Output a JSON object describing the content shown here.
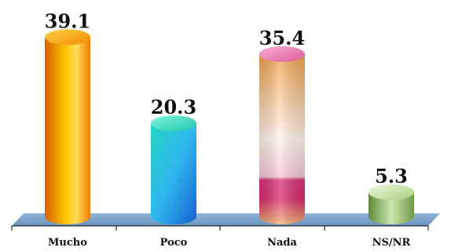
{
  "chart_data": {
    "type": "bar",
    "style": "3d-cylinder",
    "categories": [
      "Mucho",
      "Poco",
      "Nada",
      "NS/NR"
    ],
    "values": [
      39.1,
      20.3,
      35.4,
      5.3
    ],
    "value_labels": [
      "39.1",
      "20.3",
      "35.4",
      "5.3"
    ],
    "title": "",
    "xlabel": "",
    "ylabel": "",
    "ylim": [
      0,
      40
    ],
    "grid": false,
    "legend": "none",
    "colors": {
      "Mucho": [
        "#f07a00",
        "#ffc800",
        "#ffe27a"
      ],
      "Poco": [
        "#1a6fd6",
        "#2bd0e0",
        "#7df5d5"
      ],
      "Nada": [
        "#e0508a",
        "#f3a24a",
        "#fff3e8"
      ],
      "NS/NR": [
        "#4d7d2a",
        "#a8cf78",
        "#e2f2cf"
      ],
      "floor": "#7aa4cc"
    }
  }
}
